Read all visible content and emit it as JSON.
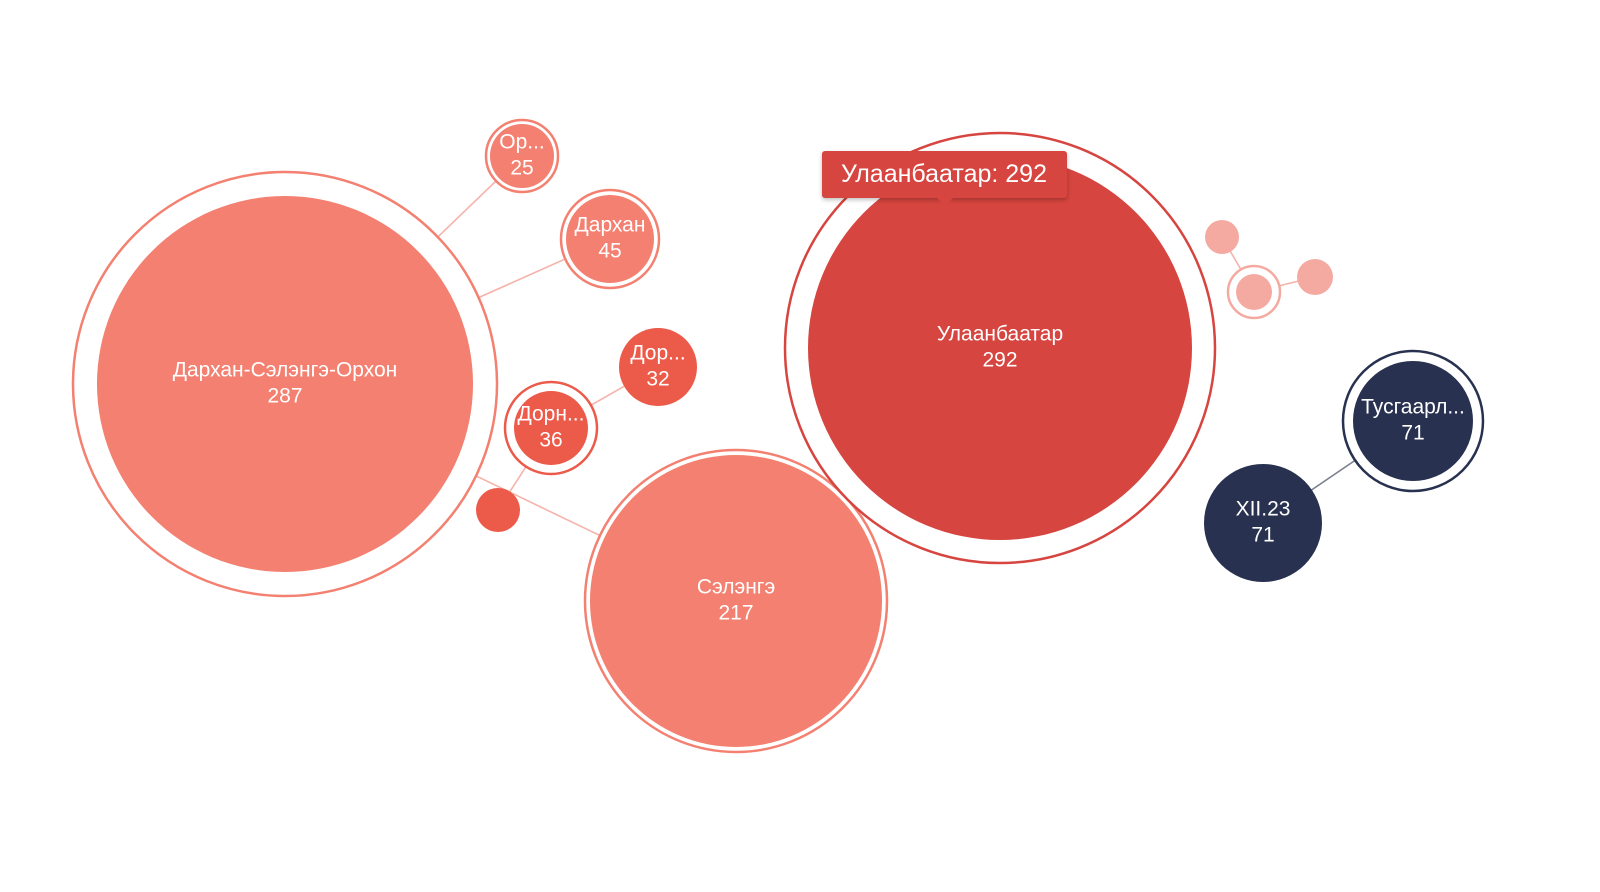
{
  "chart_data": {
    "type": "bubble",
    "colors": {
      "light": "#f38070",
      "dark_red": "#d6453f",
      "medium_red": "#ec5a4a",
      "pale": "#f5aaa1",
      "navy": "#283250"
    },
    "nodes": [
      {
        "id": "darkhan-selenge-orkhon",
        "label": "Дархан-Сэлэнгэ-Орхон",
        "value": 287,
        "color": "#f38070",
        "hub": true
      },
      {
        "id": "orkhon",
        "label": "Ор...",
        "value": 25,
        "color": "#f38070",
        "hub": true
      },
      {
        "id": "darkhan",
        "label": "Дархан",
        "value": 45,
        "color": "#f38070",
        "hub": true
      },
      {
        "id": "dornogovi",
        "label": "Дор...",
        "value": 32,
        "color": "#ec5a4a",
        "hub": false
      },
      {
        "id": "dornod",
        "label": "Дорн...",
        "value": 36,
        "color": "#ec5a4a",
        "hub": true
      },
      {
        "id": "small-red",
        "label": "",
        "value": 0,
        "color": "#ec5a4a",
        "hub": true
      },
      {
        "id": "selenge",
        "label": "Сэлэнгэ",
        "value": 217,
        "color": "#f38070",
        "hub": true
      },
      {
        "id": "ulaanbaatar",
        "label": "Улаанбаатар",
        "value": 292,
        "color": "#d6453f",
        "hub": true
      },
      {
        "id": "pale-hub",
        "label": "",
        "value": 0,
        "color": "#f5aaa1",
        "hub": true
      },
      {
        "id": "pale-a",
        "label": "",
        "value": 0,
        "color": "#f5aaa1",
        "hub": false
      },
      {
        "id": "pale-b",
        "label": "",
        "value": 0,
        "color": "#f5aaa1",
        "hub": false
      },
      {
        "id": "tusgaarl",
        "label": "Тусгаарл...",
        "value": 71,
        "color": "#283250",
        "hub": true
      },
      {
        "id": "xii23",
        "label": "XII.23",
        "value": 71,
        "color": "#283250",
        "hub": false
      }
    ],
    "links": [
      [
        "darkhan-selenge-orkhon",
        "orkhon"
      ],
      [
        "darkhan-selenge-orkhon",
        "darkhan"
      ],
      [
        "darkhan-selenge-orkhon",
        "selenge"
      ],
      [
        "dornod",
        "dornogovi"
      ],
      [
        "dornod",
        "small-red"
      ],
      [
        "pale-hub",
        "pale-a"
      ],
      [
        "pale-hub",
        "pale-b"
      ],
      [
        "tusgaarl",
        "xii23"
      ]
    ],
    "tooltip": {
      "target": "ulaanbaatar",
      "text": "Улаанбаатар: 292"
    }
  }
}
